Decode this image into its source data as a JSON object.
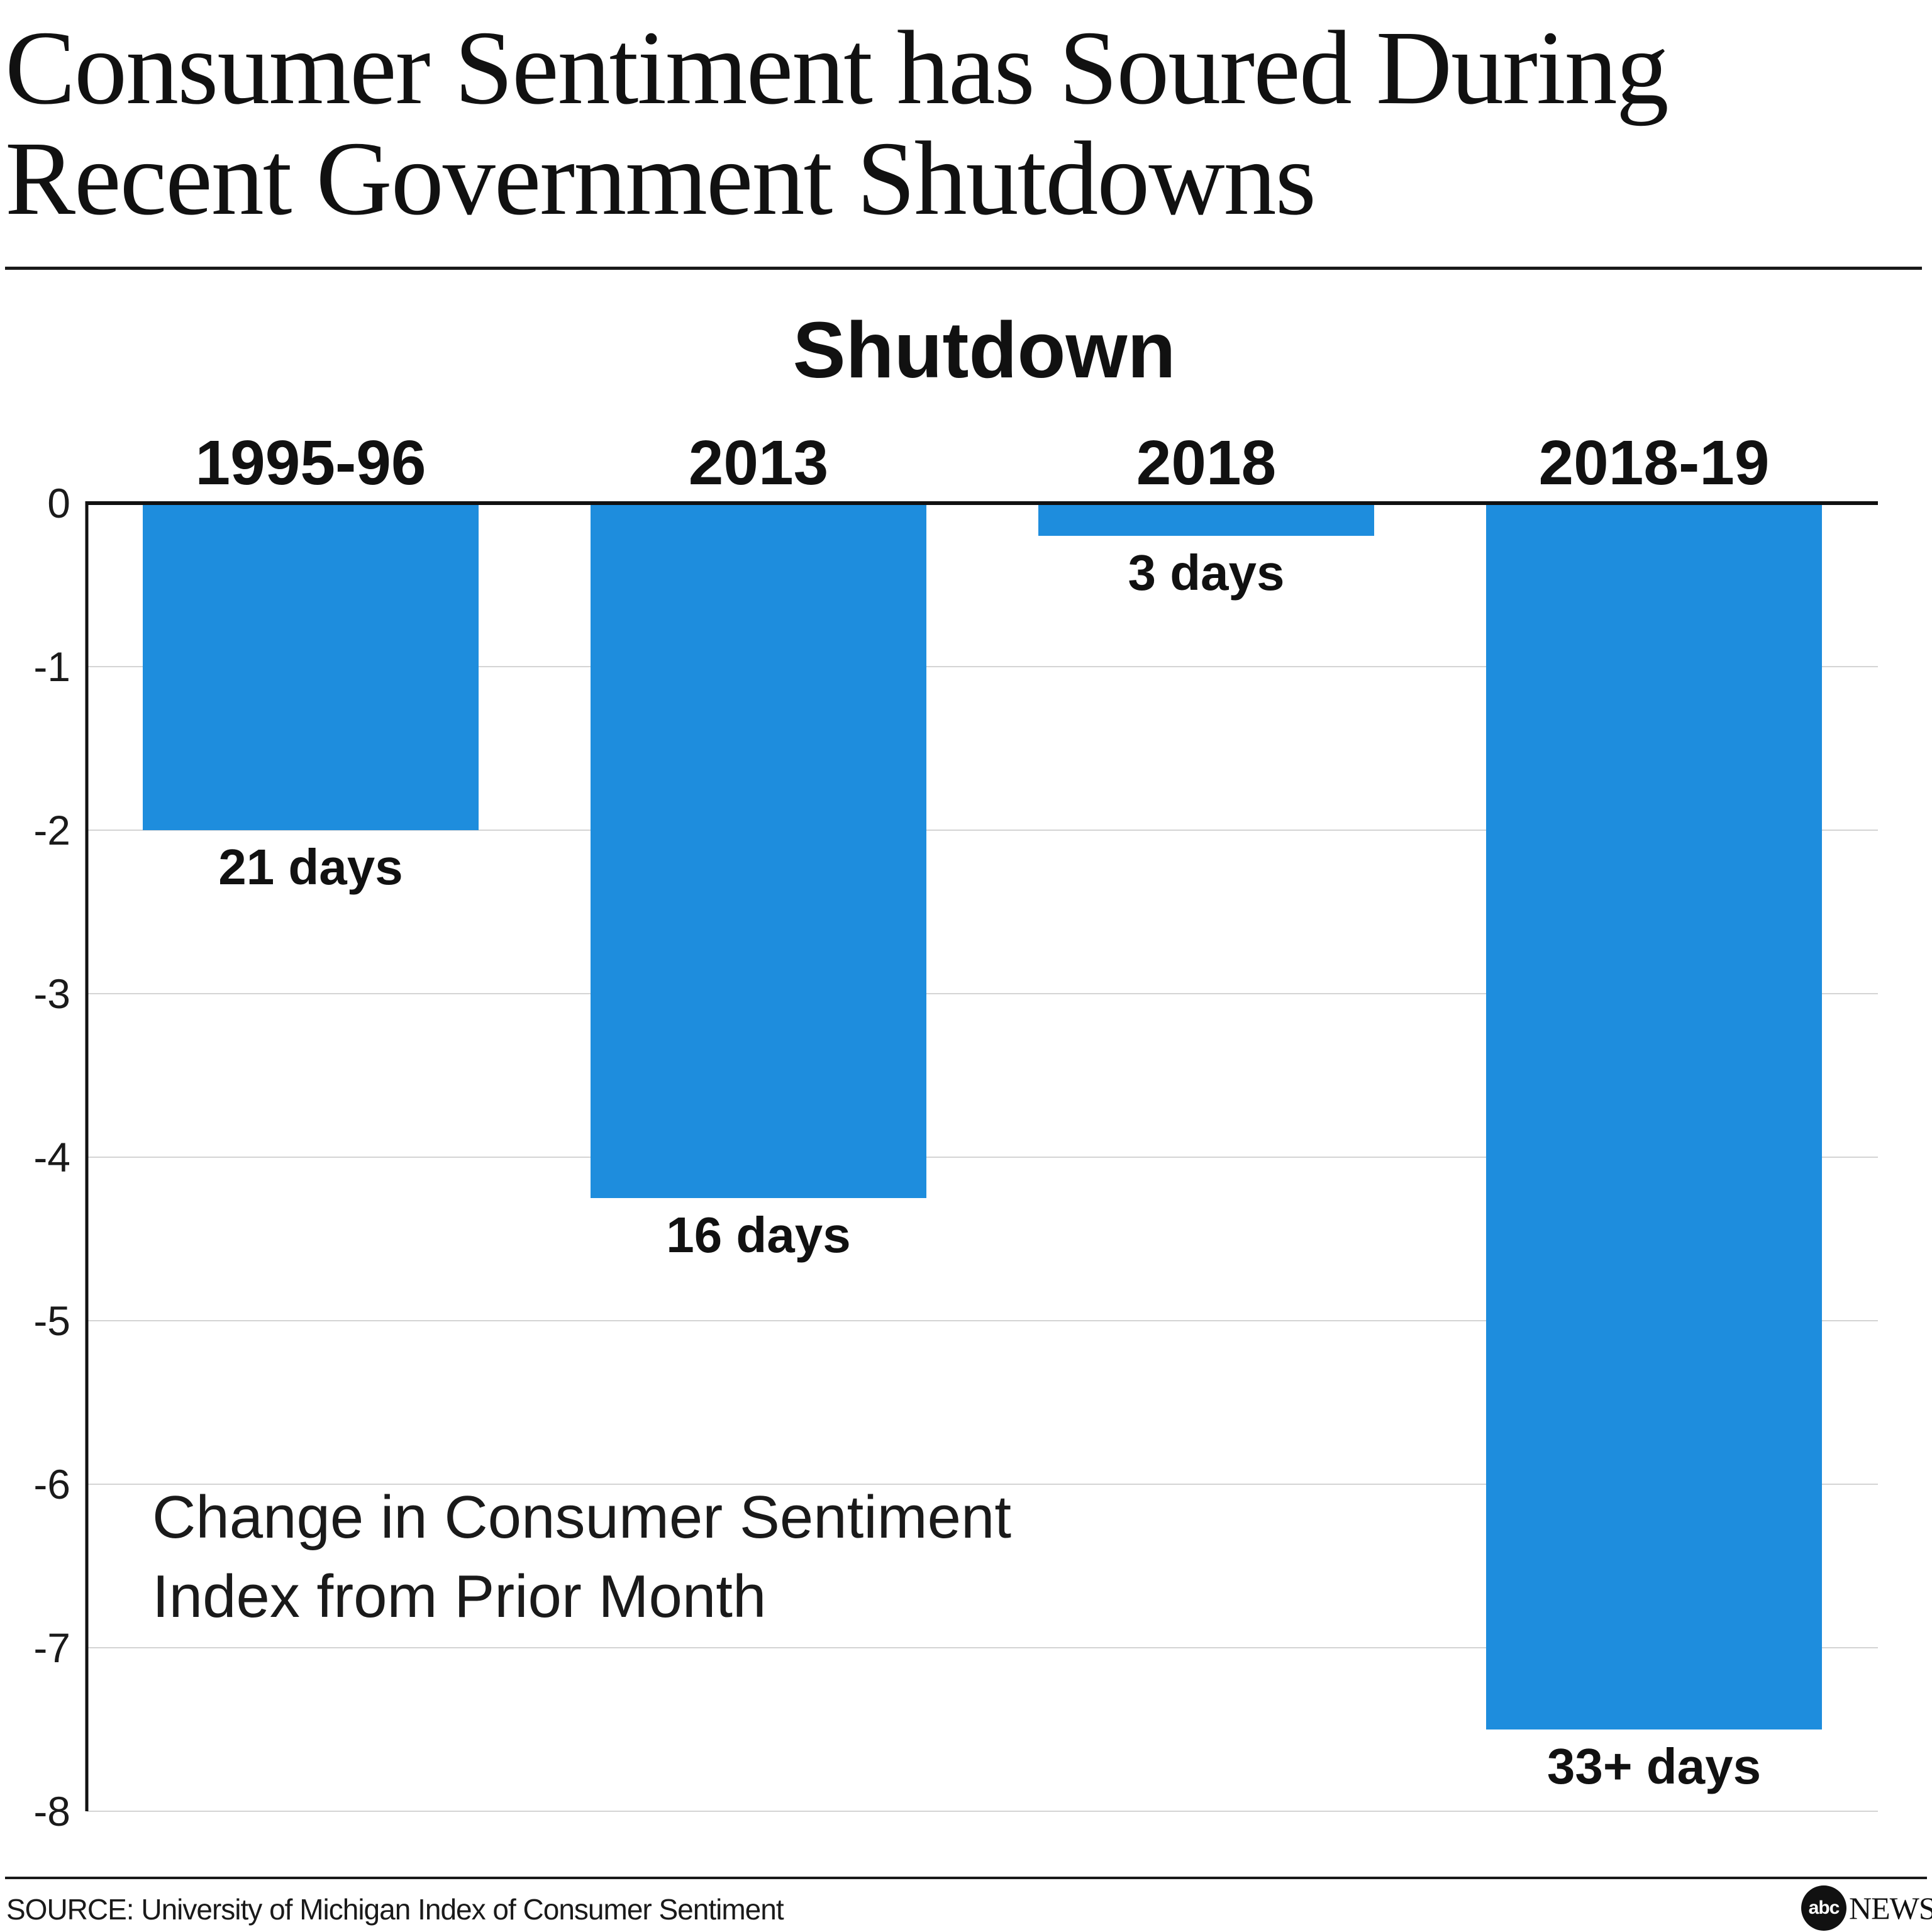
{
  "headline": {
    "line1": "Consumer Sentiment has Soured During",
    "line2": "Recent Government Shutdowns"
  },
  "chart_data": {
    "type": "bar",
    "title": "Shutdown",
    "ylabel": "Change in Consumer Sentiment Index from Prior Month",
    "annotation_lines": [
      "Change in Consumer Sentiment",
      "Index from Prior Month"
    ],
    "categories": [
      "1995-96",
      "2013",
      "2018",
      "2018-19"
    ],
    "values": [
      -2.0,
      -4.25,
      -0.2,
      -7.5
    ],
    "data_labels": [
      "21 days",
      "16 days",
      "3 days",
      "33+ days"
    ],
    "ylim": [
      -8,
      0
    ],
    "yticks": [
      0,
      -1,
      -2,
      -3,
      -4,
      -5,
      -6,
      -7,
      -8
    ],
    "grid": true,
    "category_axis_position": "top",
    "bar_color": "#1e8ddd"
  },
  "footer": {
    "source": "SOURCE: University of Michigan Index of Consumer Sentiment",
    "logo_mark": "abc",
    "logo_text": "NEWS"
  }
}
